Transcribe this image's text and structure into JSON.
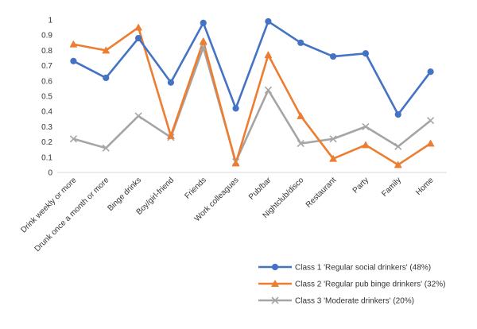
{
  "chart_data": {
    "type": "line",
    "title": "",
    "xlabel": "",
    "ylabel": "",
    "ylim": [
      0,
      1
    ],
    "yticks": [
      "0",
      "0.1",
      "0.2",
      "0.3",
      "0.4",
      "0.5",
      "0.6",
      "0.7",
      "0.8",
      "0.9",
      "1"
    ],
    "grid": false,
    "legend_position": "bottom-right",
    "categories": [
      "Drink weekly or more",
      "Drunk once a month or more",
      "Binge drinks",
      "Boy/girl-friend",
      "Friends",
      "Work colleagues",
      "Pub/bar",
      "Nightclub/disco",
      "Restaurant",
      "Party",
      "Family",
      "Home"
    ],
    "series": [
      {
        "name": "Class 1 'Regular social drinkers' (48%)",
        "color": "#4472C4",
        "marker": "circle",
        "values": [
          0.73,
          0.62,
          0.88,
          0.59,
          0.98,
          0.42,
          0.99,
          0.85,
          0.76,
          0.78,
          0.38,
          0.66
        ]
      },
      {
        "name": "Class 2 'Regular pub binge drinkers' (32%)",
        "color": "#ED7D31",
        "marker": "triangle",
        "values": [
          0.84,
          0.8,
          0.95,
          0.24,
          0.86,
          0.06,
          0.77,
          0.37,
          0.09,
          0.18,
          0.05,
          0.19
        ]
      },
      {
        "name": "Class 3 'Moderate drinkers' (20%)",
        "color": "#A5A5A5",
        "marker": "x",
        "values": [
          0.22,
          0.16,
          0.37,
          0.23,
          0.82,
          0.07,
          0.54,
          0.19,
          0.22,
          0.3,
          0.17,
          0.34
        ]
      }
    ]
  }
}
